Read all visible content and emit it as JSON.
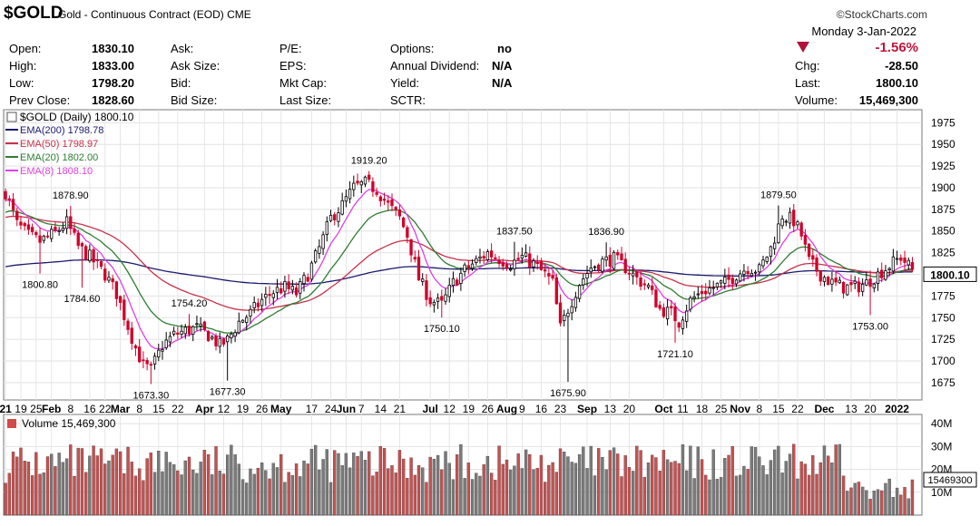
{
  "header": {
    "symbol": "$GOLD",
    "description": "Gold - Continuous Contract (EOD)",
    "exchange": "CME",
    "brand": "©StockCharts.com",
    "date": "Monday  3-Jan-2022",
    "change_pct": "-1.56%",
    "direction": "down",
    "stats": [
      {
        "label": "Open:",
        "value": "1830.10"
      },
      {
        "label": "High:",
        "value": "1833.00"
      },
      {
        "label": "Low:",
        "value": "1798.20"
      },
      {
        "label": "Prev Close:",
        "value": "1828.60"
      }
    ],
    "col2": [
      "Ask:",
      "Ask Size:",
      "Bid:",
      "Bid Size:"
    ],
    "col3": [
      "P/E:",
      "EPS:",
      "Mkt Cap:",
      "Last Size:"
    ],
    "col4": [
      {
        "label": "Options:",
        "value": "no"
      },
      {
        "label": "Annual Dividend:",
        "value": "N/A"
      },
      {
        "label": "Yield:",
        "value": "N/A"
      },
      {
        "label": "SCTR:",
        "value": ""
      }
    ],
    "right": [
      {
        "label": "Chg:",
        "value": "-28.50"
      },
      {
        "label": "Last:",
        "value": "1800.10"
      },
      {
        "label": "Volume:",
        "value": "15,469,300"
      }
    ]
  },
  "chart_data": {
    "type": "candlestick",
    "title": "$GOLD (Daily) 1800.10",
    "last_price_label": "1800.10",
    "y_ticks": [
      1675,
      1700,
      1725,
      1750,
      1775,
      1800,
      1825,
      1850,
      1875,
      1900,
      1925,
      1950,
      1975
    ],
    "y_range": [
      1655,
      1990
    ],
    "legend": [
      {
        "name": "EMA(200) 1798.78",
        "color": "#1a1a6e"
      },
      {
        "name": "EMA(50) 1798.97",
        "color": "#c8324a"
      },
      {
        "name": "EMA(20) 1802.00",
        "color": "#2e7d32"
      },
      {
        "name": "EMA(8) 1808.10",
        "color": "#e040e0"
      }
    ],
    "x_labels": [
      {
        "text": "21",
        "bold": true,
        "i": 0
      },
      {
        "text": "19",
        "i": 4
      },
      {
        "text": "25",
        "i": 8
      },
      {
        "text": "Feb",
        "bold": true,
        "i": 12
      },
      {
        "text": "8",
        "i": 17
      },
      {
        "text": "16",
        "i": 22
      },
      {
        "text": "22",
        "i": 26
      },
      {
        "text": "Mar",
        "bold": true,
        "i": 30
      },
      {
        "text": "8",
        "i": 35
      },
      {
        "text": "15",
        "i": 40
      },
      {
        "text": "22",
        "i": 45
      },
      {
        "text": "Apr",
        "bold": true,
        "i": 52
      },
      {
        "text": "12",
        "i": 57
      },
      {
        "text": "19",
        "i": 62
      },
      {
        "text": "26",
        "i": 67
      },
      {
        "text": "May",
        "bold": true,
        "i": 72
      },
      {
        "text": "17",
        "i": 80
      },
      {
        "text": "24",
        "i": 85
      },
      {
        "text": "Jun",
        "bold": true,
        "i": 89
      },
      {
        "text": "7",
        "i": 93
      },
      {
        "text": "14",
        "i": 98
      },
      {
        "text": "21",
        "i": 103
      },
      {
        "text": "Jul",
        "bold": true,
        "i": 111
      },
      {
        "text": "12",
        "i": 116
      },
      {
        "text": "19",
        "i": 121
      },
      {
        "text": "26",
        "i": 126
      },
      {
        "text": "Aug",
        "bold": true,
        "i": 131
      },
      {
        "text": "9",
        "i": 135
      },
      {
        "text": "16",
        "i": 140
      },
      {
        "text": "23",
        "i": 145
      },
      {
        "text": "Sep",
        "bold": true,
        "i": 152
      },
      {
        "text": "13",
        "i": 158
      },
      {
        "text": "20",
        "i": 163
      },
      {
        "text": "Oct",
        "bold": true,
        "i": 172
      },
      {
        "text": "11",
        "i": 177
      },
      {
        "text": "18",
        "i": 182
      },
      {
        "text": "25",
        "i": 187
      },
      {
        "text": "Nov",
        "bold": true,
        "i": 192
      },
      {
        "text": "8",
        "i": 197
      },
      {
        "text": "15",
        "i": 202
      },
      {
        "text": "22",
        "i": 207
      },
      {
        "text": "Dec",
        "bold": true,
        "i": 214
      },
      {
        "text": "13",
        "i": 221
      },
      {
        "text": "20",
        "i": 226
      },
      {
        "text": "2022",
        "bold": true,
        "i": 233
      }
    ],
    "annotations": [
      {
        "text": "1878.90",
        "price": 1878.9,
        "i": 17,
        "pos": "above"
      },
      {
        "text": "1800.80",
        "price": 1800.8,
        "i": 9,
        "pos": "below"
      },
      {
        "text": "1784.60",
        "price": 1784.6,
        "i": 20,
        "pos": "below"
      },
      {
        "text": "1754.20",
        "price": 1754.2,
        "i": 48,
        "pos": "above"
      },
      {
        "text": "1673.30",
        "price": 1673.3,
        "i": 38,
        "pos": "below"
      },
      {
        "text": "1677.30",
        "price": 1677.3,
        "i": 58,
        "pos": "below"
      },
      {
        "text": "1919.20",
        "price": 1919.2,
        "i": 95,
        "pos": "above"
      },
      {
        "text": "1750.10",
        "price": 1750.1,
        "i": 114,
        "pos": "below"
      },
      {
        "text": "1837.50",
        "price": 1837.5,
        "i": 133,
        "pos": "above"
      },
      {
        "text": "1675.90",
        "price": 1675.9,
        "i": 147,
        "pos": "below"
      },
      {
        "text": "1836.90",
        "price": 1836.9,
        "i": 157,
        "pos": "above"
      },
      {
        "text": "1721.10",
        "price": 1721.1,
        "i": 175,
        "pos": "below"
      },
      {
        "text": "1879.50",
        "price": 1879.5,
        "i": 202,
        "pos": "above"
      },
      {
        "text": "1753.00",
        "price": 1753.0,
        "i": 226,
        "pos": "below"
      }
    ],
    "anchors": [
      [
        0,
        1895
      ],
      [
        3,
        1858
      ],
      [
        6,
        1845
      ],
      [
        9,
        1838
      ],
      [
        13,
        1848
      ],
      [
        16,
        1860
      ],
      [
        19,
        1832
      ],
      [
        22,
        1820
      ],
      [
        26,
        1800
      ],
      [
        29,
        1778
      ],
      [
        32,
        1740
      ],
      [
        34,
        1715
      ],
      [
        36,
        1695
      ],
      [
        38,
        1690
      ],
      [
        41,
        1718
      ],
      [
        44,
        1730
      ],
      [
        47,
        1735
      ],
      [
        50,
        1738
      ],
      [
        53,
        1730
      ],
      [
        56,
        1718
      ],
      [
        58,
        1724
      ],
      [
        61,
        1745
      ],
      [
        64,
        1755
      ],
      [
        67,
        1770
      ],
      [
        70,
        1780
      ],
      [
        73,
        1785
      ],
      [
        76,
        1778
      ],
      [
        79,
        1800
      ],
      [
        82,
        1830
      ],
      [
        85,
        1865
      ],
      [
        88,
        1880
      ],
      [
        91,
        1900
      ],
      [
        94,
        1905
      ],
      [
        97,
        1898
      ],
      [
        100,
        1880
      ],
      [
        103,
        1865
      ],
      [
        105,
        1845
      ],
      [
        108,
        1795
      ],
      [
        111,
        1770
      ],
      [
        114,
        1765
      ],
      [
        117,
        1790
      ],
      [
        120,
        1805
      ],
      [
        123,
        1815
      ],
      [
        126,
        1825
      ],
      [
        129,
        1818
      ],
      [
        132,
        1812
      ],
      [
        135,
        1820
      ],
      [
        138,
        1812
      ],
      [
        141,
        1800
      ],
      [
        143,
        1790
      ],
      [
        145,
        1738
      ],
      [
        147,
        1760
      ],
      [
        150,
        1790
      ],
      [
        153,
        1808
      ],
      [
        156,
        1815
      ],
      [
        159,
        1818
      ],
      [
        162,
        1808
      ],
      [
        165,
        1795
      ],
      [
        168,
        1785
      ],
      [
        171,
        1760
      ],
      [
        174,
        1755
      ],
      [
        176,
        1745
      ],
      [
        179,
        1770
      ],
      [
        182,
        1780
      ],
      [
        185,
        1785
      ],
      [
        188,
        1790
      ],
      [
        191,
        1800
      ],
      [
        194,
        1808
      ],
      [
        197,
        1805
      ],
      [
        200,
        1830
      ],
      [
        203,
        1868
      ],
      [
        206,
        1862
      ],
      [
        208,
        1845
      ],
      [
        210,
        1815
      ],
      [
        213,
        1800
      ],
      [
        216,
        1790
      ],
      [
        219,
        1785
      ],
      [
        222,
        1785
      ],
      [
        225,
        1790
      ],
      [
        228,
        1800
      ],
      [
        231,
        1810
      ],
      [
        234,
        1820
      ],
      [
        237,
        1805
      ]
    ],
    "volume": {
      "label": "Volume 15,469,300",
      "value": 15469300,
      "last_label": "15469300",
      "ticks": [
        "10M",
        "20M",
        "30M",
        "40M"
      ],
      "max": 44000000
    }
  }
}
